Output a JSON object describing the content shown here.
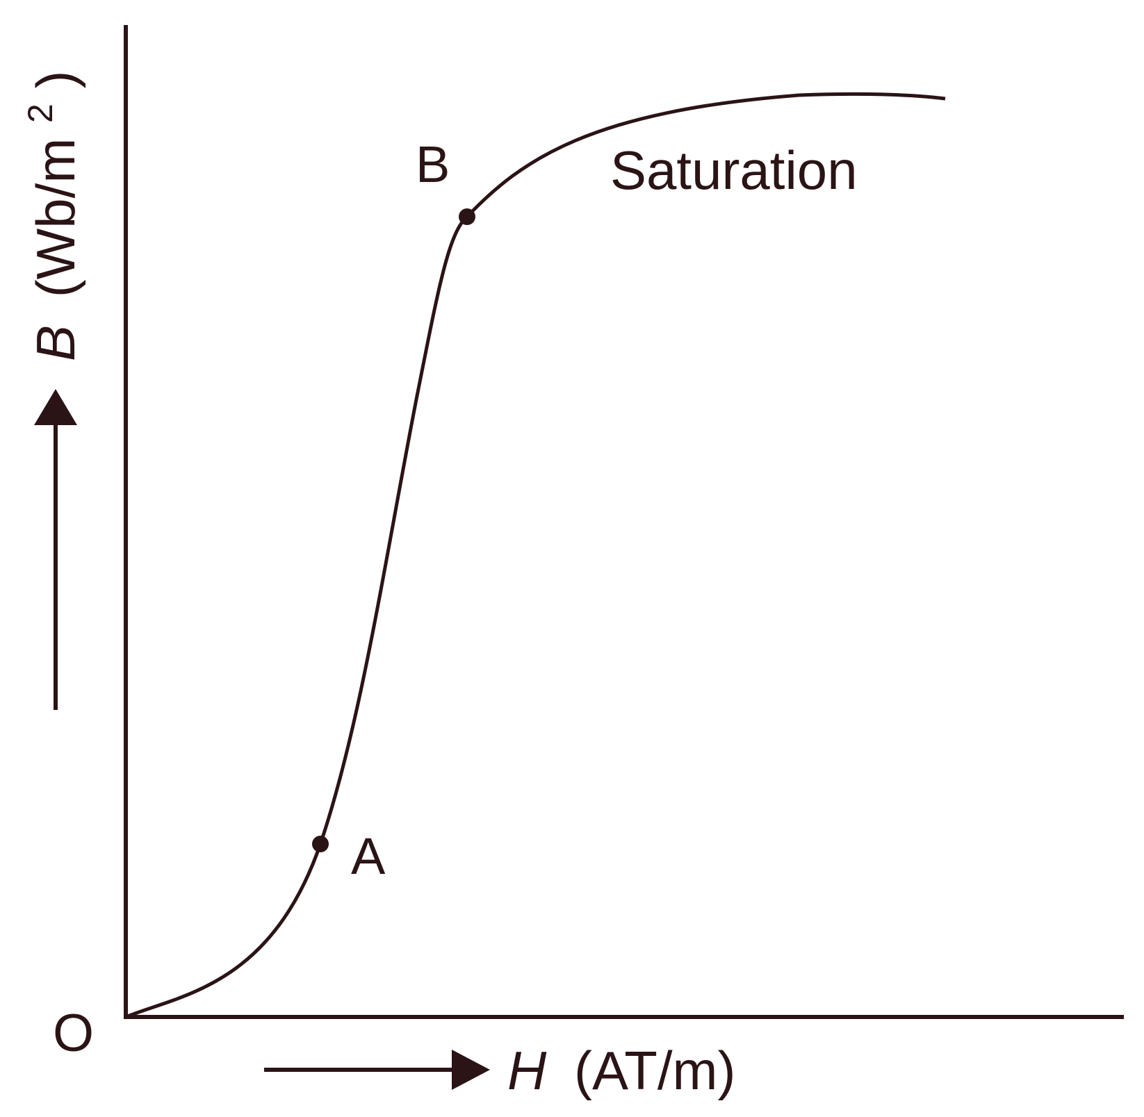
{
  "colors": {
    "ink": "#2b1416",
    "background": "#ffffff"
  },
  "labels": {
    "origin": "O",
    "point_a": "A",
    "point_b": "B",
    "saturation": "Saturation",
    "y_axis": {
      "symbol": "B",
      "unit": "(Wb/m",
      "superscript": "2",
      "close": ")"
    },
    "x_axis": {
      "symbol": "H",
      "unit": "(AT/m)"
    }
  }
}
